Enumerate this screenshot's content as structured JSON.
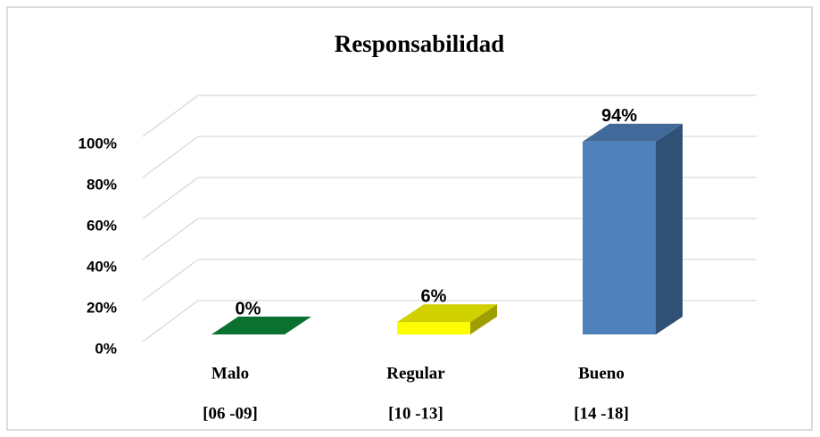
{
  "chart_data": {
    "type": "bar3d",
    "title": "Responsabilidad",
    "categories": [
      "Malo",
      "Regular",
      "Bueno"
    ],
    "ranges": [
      "[06 -09]",
      "[10 -13]",
      "[14 -18]"
    ],
    "values": [
      0,
      6,
      94
    ],
    "value_labels": [
      "0%",
      "6%",
      "94%"
    ],
    "colors": [
      "#0e8a3a",
      "#ffff00",
      "#4f81bd"
    ],
    "ylim": [
      0,
      100
    ],
    "yticks": [
      {
        "value": 0,
        "label": "0%"
      },
      {
        "value": 20,
        "label": "20%"
      },
      {
        "value": 40,
        "label": "40%"
      },
      {
        "value": 60,
        "label": "60%"
      },
      {
        "value": 80,
        "label": "80%"
      },
      {
        "value": 100,
        "label": "100%"
      }
    ],
    "grid": true
  }
}
